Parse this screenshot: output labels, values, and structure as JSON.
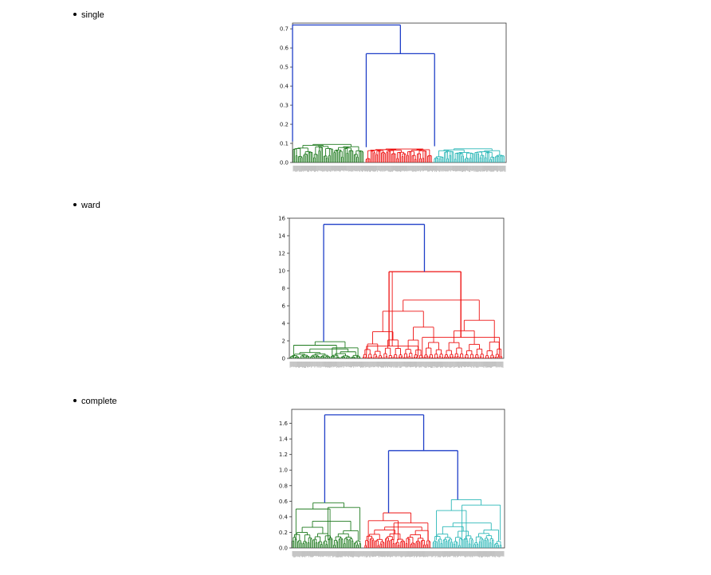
{
  "sections": [
    {
      "label": "single"
    },
    {
      "label": "ward"
    },
    {
      "label": "complete"
    }
  ],
  "chart_data": [
    {
      "type": "dendrogram",
      "method": "single",
      "ylim": [
        0,
        0.73
      ],
      "yticks": [
        "0.0",
        "0.1",
        "0.2",
        "0.3",
        "0.4",
        "0.5",
        "0.6",
        "0.7"
      ],
      "ytick_values": [
        0,
        0.1,
        0.2,
        0.3,
        0.4,
        0.5,
        0.6,
        0.7
      ],
      "link_color": "#1f3fc8",
      "clusters": [
        {
          "color": "#1e7a1e",
          "x": [
            0.0,
            0.34
          ],
          "top": 0.11,
          "floor": 0.07
        },
        {
          "color": "#ee1111",
          "x": [
            0.34,
            0.66
          ],
          "top": 0.08,
          "floor": 0.05
        },
        {
          "color": "#2ab7b7",
          "x": [
            0.66,
            1.0
          ],
          "top": 0.085,
          "floor": 0.05
        }
      ],
      "links": [
        {
          "x1": 0.345,
          "h1": 0.08,
          "x2": 0.665,
          "h2": 0.085,
          "h": 0.57
        },
        {
          "x1": 0.0,
          "h1": 0.11,
          "x2": 0.505,
          "h2": 0.57,
          "h": 0.72
        }
      ]
    },
    {
      "type": "dendrogram",
      "method": "ward",
      "ylim": [
        0,
        16
      ],
      "yticks": [
        "0",
        "2",
        "4",
        "6",
        "8",
        "10",
        "12",
        "14",
        "16"
      ],
      "ytick_values": [
        0,
        2,
        4,
        6,
        8,
        10,
        12,
        14,
        16
      ],
      "link_color": "#1f3fc8",
      "clusters": [
        {
          "color": "#1e7a1e",
          "x": [
            0.0,
            0.34
          ],
          "top": 1.9,
          "floor": 0.2,
          "sub": [
            {
              "x": [
                0.02,
                0.22
              ],
              "h": 1.5
            },
            {
              "x": [
                0.2,
                0.32
              ],
              "h": 1.2
            }
          ]
        },
        {
          "color": "#ee1111",
          "x": [
            0.34,
            1.0
          ],
          "top": 9.9,
          "floor": 0.2,
          "sub": [
            {
              "x": [
                0.36,
                0.6
              ],
              "h": 1.4
            },
            {
              "x": [
                0.62,
                0.98
              ],
              "h": 2.4
            }
          ]
        }
      ],
      "links": [
        {
          "x1": 0.465,
          "h1": 1.4,
          "x2": 0.8,
          "h2": 2.4,
          "h": 9.9,
          "color": "#ee1111"
        },
        {
          "x1": 0.16,
          "h1": 1.9,
          "x2": 0.63,
          "h2": 9.9,
          "h": 15.3
        }
      ]
    },
    {
      "type": "dendrogram",
      "method": "complete",
      "ylim": [
        0,
        1.78
      ],
      "yticks": [
        "0.0",
        "0.2",
        "0.4",
        "0.6",
        "0.8",
        "1.0",
        "1.2",
        "1.4",
        "1.6"
      ],
      "ytick_values": [
        0,
        0.2,
        0.4,
        0.6,
        0.8,
        1.0,
        1.2,
        1.4,
        1.6
      ],
      "link_color": "#1f3fc8",
      "clusters": [
        {
          "color": "#1e7a1e",
          "x": [
            0.0,
            0.34
          ],
          "top": 0.58,
          "floor": 0.1,
          "sub": [
            {
              "x": [
                0.02,
                0.18
              ],
              "h": 0.5
            },
            {
              "x": [
                0.17,
                0.32
              ],
              "h": 0.52
            }
          ]
        },
        {
          "color": "#ee1111",
          "x": [
            0.34,
            0.66
          ],
          "top": 0.45,
          "floor": 0.1,
          "sub": [
            {
              "x": [
                0.36,
                0.5
              ],
              "h": 0.35
            },
            {
              "x": [
                0.48,
                0.64
              ],
              "h": 0.32
            }
          ]
        },
        {
          "color": "#2ab7b7",
          "x": [
            0.66,
            1.0
          ],
          "top": 0.62,
          "floor": 0.1,
          "sub": [
            {
              "x": [
                0.68,
                0.82
              ],
              "h": 0.48
            },
            {
              "x": [
                0.8,
                0.98
              ],
              "h": 0.55
            }
          ]
        }
      ],
      "links": [
        {
          "x1": 0.455,
          "h1": 0.45,
          "x2": 0.78,
          "h2": 0.62,
          "h": 1.25
        },
        {
          "x1": 0.155,
          "h1": 0.58,
          "x2": 0.62,
          "h2": 1.25,
          "h": 1.71
        }
      ]
    }
  ]
}
